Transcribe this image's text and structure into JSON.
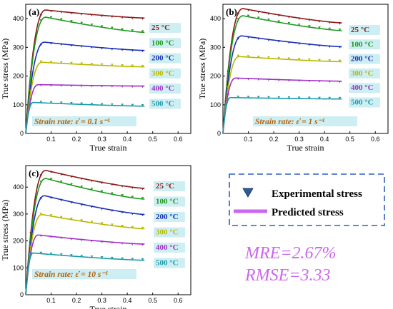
{
  "chart_data": [
    {
      "type": "line",
      "panel_label": "(a)",
      "xlabel": "True strain",
      "ylabel": "True stress (MPa)",
      "xlim": [
        0,
        0.65
      ],
      "ylim": [
        0,
        450
      ],
      "xticks": [
        "0.1",
        "0.2",
        "0.3",
        "0.4",
        "0.5",
        "0.6"
      ],
      "yticks": [
        "0",
        "100",
        "200",
        "300",
        "400"
      ],
      "strain_rate_label": "Strain rate: ε̇ = 0.1 s⁻¹",
      "series": [
        {
          "name": "25 °C",
          "color": "#8b1a1a",
          "peak": 430,
          "peak_strain": 0.08,
          "end": 402
        },
        {
          "name": "100 °C",
          "color": "#1e9a1e",
          "peak": 405,
          "peak_strain": 0.08,
          "end": 352
        },
        {
          "name": "200 °C",
          "color": "#1a2fb5",
          "peak": 318,
          "peak_strain": 0.075,
          "end": 289
        },
        {
          "name": "300 °C",
          "color": "#b8b800",
          "peak": 248,
          "peak_strain": 0.065,
          "end": 232
        },
        {
          "name": "400 °C",
          "color": "#a030c8",
          "peak": 170,
          "peak_strain": 0.05,
          "end": 165
        },
        {
          "name": "500 °C",
          "color": "#1a9aa8",
          "peak": 108,
          "peak_strain": 0.03,
          "end": 95
        }
      ]
    },
    {
      "type": "line",
      "panel_label": "(b)",
      "xlabel": "True strain",
      "ylabel": "True stress (MPa)",
      "xlim": [
        0,
        0.65
      ],
      "ylim": [
        0,
        450
      ],
      "xticks": [
        "0.1",
        "0.2",
        "0.3",
        "0.4",
        "0.5",
        "0.6"
      ],
      "yticks": [
        "0",
        "100",
        "200",
        "300",
        "400"
      ],
      "strain_rate_label": "Strain rate: ε̇ = 1 s⁻¹",
      "series": [
        {
          "name": "25 °C",
          "color": "#8b1a1a",
          "peak": 435,
          "peak_strain": 0.08,
          "end": 385
        },
        {
          "name": "100 °C",
          "color": "#1e9a1e",
          "peak": 410,
          "peak_strain": 0.08,
          "end": 358
        },
        {
          "name": "200 °C",
          "color": "#1a2fb5",
          "peak": 340,
          "peak_strain": 0.075,
          "end": 302
        },
        {
          "name": "300 °C",
          "color": "#b8b800",
          "peak": 268,
          "peak_strain": 0.065,
          "end": 250
        },
        {
          "name": "400 °C",
          "color": "#a030c8",
          "peak": 193,
          "peak_strain": 0.05,
          "end": 182
        },
        {
          "name": "500 °C",
          "color": "#1a9aa8",
          "peak": 125,
          "peak_strain": 0.03,
          "end": 120
        }
      ]
    },
    {
      "type": "line",
      "panel_label": "(c)",
      "xlabel": "True strain",
      "ylabel": "True stress (MPa)",
      "xlim": [
        0,
        0.65
      ],
      "ylim": [
        0,
        480
      ],
      "xticks": [
        "0.1",
        "0.2",
        "0.3",
        "0.4",
        "0.5",
        "0.6"
      ],
      "yticks": [
        "0",
        "100",
        "200",
        "300",
        "400"
      ],
      "strain_rate_label": "Strain rate: ε̇ = 10 s⁻¹",
      "series": [
        {
          "name": "25 °C",
          "color": "#8b1a1a",
          "peak": 462,
          "peak_strain": 0.08,
          "end": 395
        },
        {
          "name": "100 °C",
          "color": "#1e9a1e",
          "peak": 432,
          "peak_strain": 0.08,
          "end": 355
        },
        {
          "name": "200 °C",
          "color": "#1a2fb5",
          "peak": 368,
          "peak_strain": 0.075,
          "end": 298
        },
        {
          "name": "300 °C",
          "color": "#b8b800",
          "peak": 298,
          "peak_strain": 0.065,
          "end": 245
        },
        {
          "name": "400 °C",
          "color": "#a030c8",
          "peak": 222,
          "peak_strain": 0.05,
          "end": 188
        },
        {
          "name": "500 °C",
          "color": "#1a9aa8",
          "peak": 155,
          "peak_strain": 0.03,
          "end": 128
        }
      ]
    }
  ],
  "legend": {
    "experimental": "Experimental stress",
    "predicted": "Predicted stress",
    "marker_color": "#2b5c9e",
    "line_color": "#cc66ee",
    "box_color": "#2f5fc2"
  },
  "metrics": {
    "mre": "MRE=2.67%",
    "rmse": "RMSE=3.33",
    "color": "#cc66ee"
  },
  "label_bg": "#cdeef2",
  "rate_color": "#b8620a"
}
